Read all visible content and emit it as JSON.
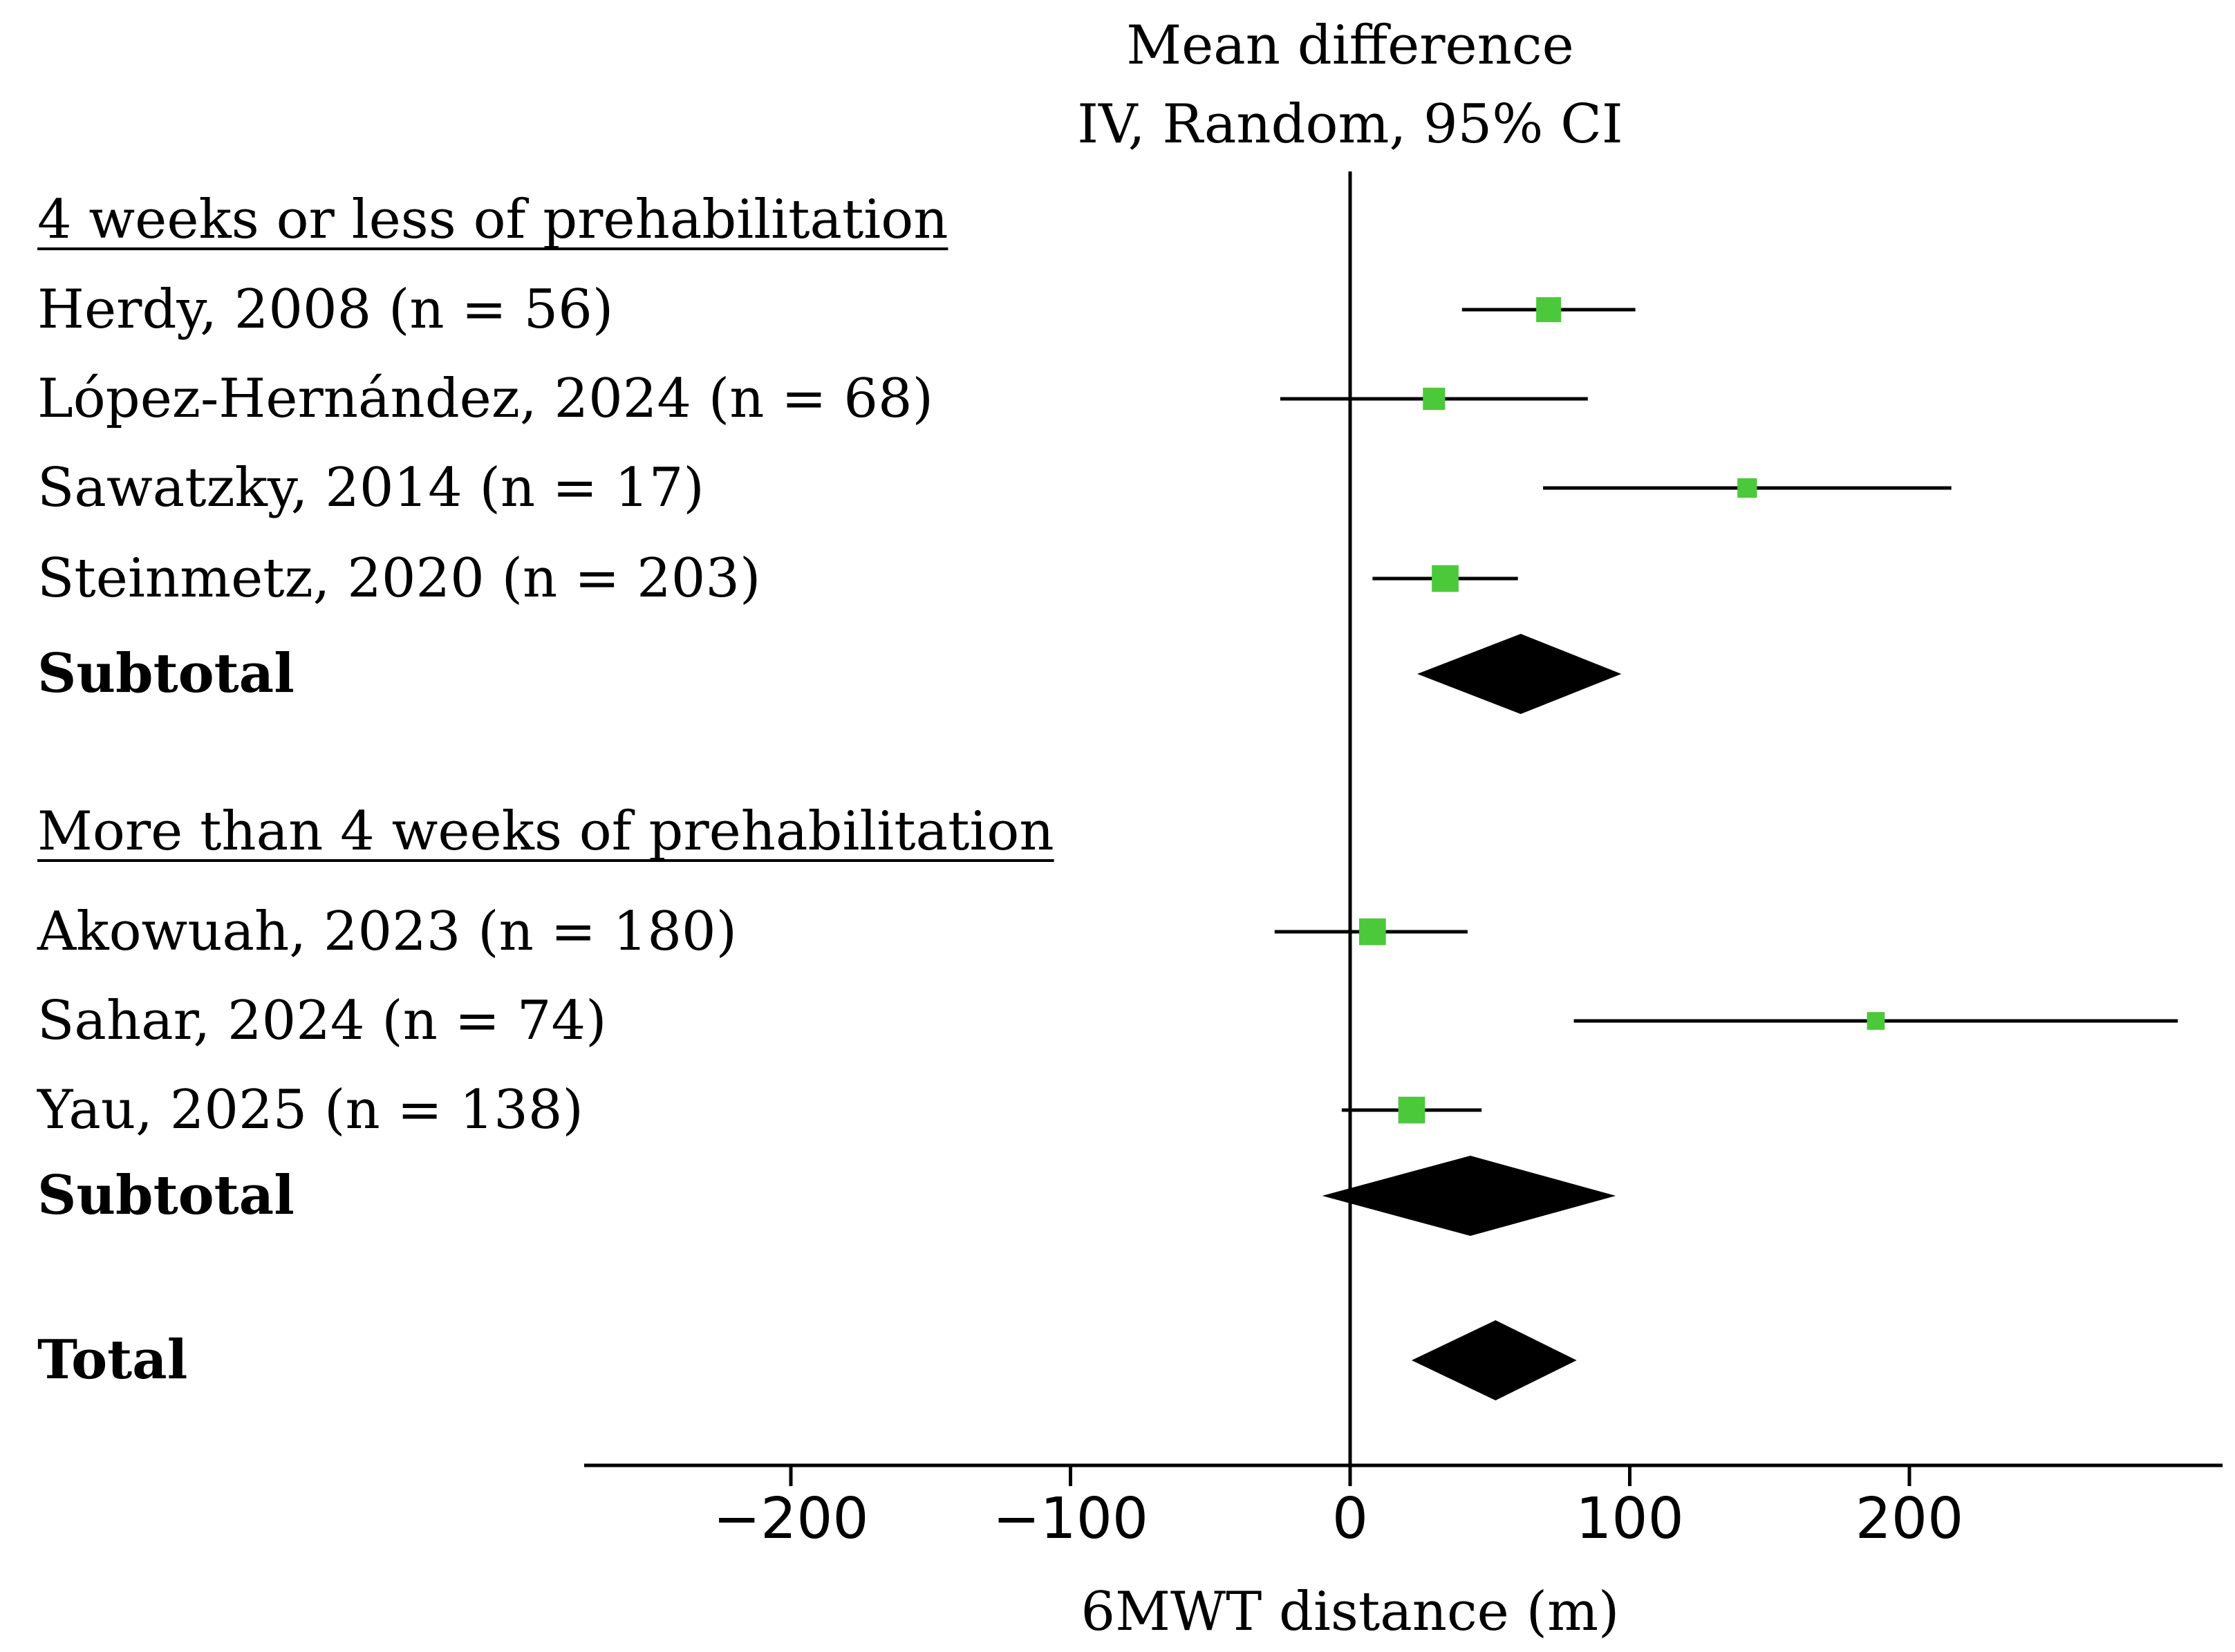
{
  "chart_data": {
    "type": "forest",
    "header": [
      "Mean difference",
      "IV, Random, 95% CI"
    ],
    "xlabel": "6MWT distance (m)",
    "xlim": [
      -275,
      310
    ],
    "xticks": [
      -200,
      -100,
      0,
      100,
      200
    ],
    "xtick_labels": [
      "−200",
      "−100",
      "0",
      "100",
      "200"
    ],
    "marker_color": "#4cc93a",
    "groups": [
      {
        "label": "4 weeks or less of prehabilitation",
        "studies": [
          {
            "label": "Herdy, 2008 (n = 56)",
            "mean": 71,
            "lower": 40,
            "upper": 102,
            "weight": 0.85
          },
          {
            "label": "López-Hernández, 2024 (n = 68)",
            "mean": 30,
            "lower": -25,
            "upper": 85,
            "weight": 0.7
          },
          {
            "label": "Sawatzky, 2014 (n = 17)",
            "mean": 142,
            "lower": 69,
            "upper": 215,
            "weight": 0.55
          },
          {
            "label": "Steinmetz, 2020 (n = 203)",
            "mean": 34,
            "lower": 8,
            "upper": 60,
            "weight": 0.95
          }
        ],
        "subtotal": {
          "label": "Subtotal",
          "mean": 61,
          "lower": 24,
          "upper": 97
        }
      },
      {
        "label": "More than 4 weeks of prehabilitation",
        "studies": [
          {
            "label": "Akowuah, 2023 (n = 180)",
            "mean": 8,
            "lower": -27,
            "upper": 42,
            "weight": 0.95
          },
          {
            "label": "Sahar, 2024 (n = 74)",
            "mean": 188,
            "lower": 80,
            "upper": 296,
            "weight": 0.45
          },
          {
            "label": "Yau, 2025 (n = 138)",
            "mean": 22,
            "lower": -3,
            "upper": 47,
            "weight": 0.95
          }
        ],
        "subtotal": {
          "label": "Subtotal",
          "mean": 43,
          "lower": -10,
          "upper": 95
        }
      }
    ],
    "total": {
      "label": "Total",
      "mean": 52,
      "lower": 22,
      "upper": 81
    }
  }
}
